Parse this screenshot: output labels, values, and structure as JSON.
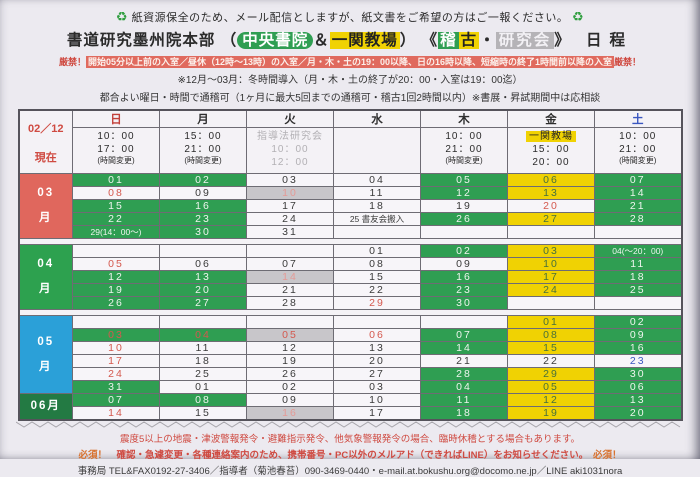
{
  "notices": {
    "recycle_icon": "♻",
    "recycle_line": "紙資源保全のため、メール配信としますが、紙文書をご希望の方はご一報ください。"
  },
  "title": {
    "main": "書道研究墨州院本部",
    "paren_open": "（",
    "venue1": "中央書院",
    "amp": "＆",
    "venue2": "一関教場",
    "paren_close": "）",
    "angle_open": "《",
    "keiko_1": "稽",
    "keiko_2": "古",
    "dot": "・",
    "kenkyukai": "研究会",
    "angle_close": "》",
    "suffix": "日程"
  },
  "rules": {
    "strict_prefix": "厳禁！",
    "strict_body": "開始05分以上前の入室／昼休（12時～13時）の入室／月・木・土の19：00以降、日の16時以降、短縮時の終了1時間前以降の入室",
    "strict_suffix": "厳禁！",
    "winter": "※12月～03月：冬時間導入（月・木・土の終了が20：00・入室は19：00迄）",
    "flexible": "都合よい曜日・時間で通稽可（1ヶ月に最大5回までの通稽可・稽古1回2時間以内）※書展・昇試期間中は応相談"
  },
  "table": {
    "as_of": {
      "date": "02／12",
      "label": "現在"
    },
    "days": [
      {
        "label": "日",
        "cls": "sun",
        "name": "sun"
      },
      {
        "label": "月",
        "cls": "wk",
        "name": "mon"
      },
      {
        "label": "火",
        "cls": "wk",
        "name": "tue"
      },
      {
        "label": "水",
        "cls": "wk",
        "name": "wed"
      },
      {
        "label": "木",
        "cls": "wk",
        "name": "thu"
      },
      {
        "label": "金",
        "cls": "wk",
        "name": "fri"
      },
      {
        "label": "土",
        "cls": "sat",
        "name": "sat"
      }
    ],
    "day_info": [
      {
        "lines": [
          "10：00",
          "17：00",
          "(時間変更)"
        ]
      },
      {
        "lines": [
          "15：00",
          "21：00",
          "(時間変更)"
        ]
      },
      {
        "lines": [
          "指導法研究会",
          "10：00",
          "12：00"
        ],
        "muted": true
      },
      {
        "lines": []
      },
      {
        "lines": [
          "10：00",
          "21：00",
          "(時間変更)"
        ]
      },
      {
        "chip": "一関教場",
        "lines": [
          "15：00",
          "20：00"
        ]
      },
      {
        "lines": [
          "10：00",
          "21：00",
          "(時間変更)"
        ]
      }
    ],
    "months": [
      {
        "label_lines": [
          "03",
          "月"
        ],
        "bg": "#e0675d",
        "gap_after": true,
        "rows": [
          [
            {
              "t": "01",
              "bg": "g"
            },
            {
              "t": "02",
              "bg": "g"
            },
            {
              "t": "03",
              "bg": "w"
            },
            {
              "t": "04",
              "bg": "w"
            },
            {
              "t": "05",
              "bg": "g"
            },
            {
              "t": "06",
              "bg": "y"
            },
            {
              "t": "07",
              "bg": "g"
            }
          ],
          [
            {
              "t": "08",
              "bg": "w",
              "fg": "r"
            },
            {
              "t": "09",
              "bg": "w"
            },
            {
              "t": "10",
              "bg": "gr"
            },
            {
              "t": "11",
              "bg": "w"
            },
            {
              "t": "12",
              "bg": "g"
            },
            {
              "t": "13",
              "bg": "y"
            },
            {
              "t": "14",
              "bg": "g"
            }
          ],
          [
            {
              "t": "15",
              "bg": "g"
            },
            {
              "t": "16",
              "bg": "g"
            },
            {
              "t": "17",
              "bg": "w"
            },
            {
              "t": "18",
              "bg": "w"
            },
            {
              "t": "19",
              "bg": "w"
            },
            {
              "t": "20",
              "bg": "w",
              "fg": "r"
            },
            {
              "t": "21",
              "bg": "g"
            }
          ],
          [
            {
              "t": "22",
              "bg": "g"
            },
            {
              "t": "23",
              "bg": "g"
            },
            {
              "t": "24",
              "bg": "w"
            },
            {
              "t": "25 書友会搬入",
              "bg": "w"
            },
            {
              "t": "26",
              "bg": "g"
            },
            {
              "t": "27",
              "bg": "y"
            },
            {
              "t": "28",
              "bg": "g"
            }
          ],
          [
            {
              "t": "29(14：00～)",
              "bg": "g"
            },
            {
              "t": "30",
              "bg": "g"
            },
            {
              "t": "31",
              "bg": "w"
            },
            {
              "t": "",
              "bg": "w"
            },
            {
              "t": "",
              "bg": "w"
            },
            {
              "t": "",
              "bg": "w"
            },
            {
              "t": "",
              "bg": "w"
            }
          ]
        ]
      },
      {
        "label_lines": [
          "04",
          "月"
        ],
        "bg": "#2da14f",
        "gap_after": true,
        "rows": [
          [
            {
              "t": "",
              "bg": "w"
            },
            {
              "t": "",
              "bg": "w"
            },
            {
              "t": "",
              "bg": "w"
            },
            {
              "t": "01",
              "bg": "w"
            },
            {
              "t": "02",
              "bg": "g"
            },
            {
              "t": "03",
              "bg": "y"
            },
            {
              "t": "04(～20：00)",
              "bg": "g"
            }
          ],
          [
            {
              "t": "05",
              "bg": "w",
              "fg": "r"
            },
            {
              "t": "06",
              "bg": "w"
            },
            {
              "t": "07",
              "bg": "w"
            },
            {
              "t": "08",
              "bg": "w"
            },
            {
              "t": "09",
              "bg": "w"
            },
            {
              "t": "10",
              "bg": "y"
            },
            {
              "t": "11",
              "bg": "g"
            }
          ],
          [
            {
              "t": "12",
              "bg": "g"
            },
            {
              "t": "13",
              "bg": "g"
            },
            {
              "t": "14",
              "bg": "gr"
            },
            {
              "t": "15",
              "bg": "w"
            },
            {
              "t": "16",
              "bg": "g"
            },
            {
              "t": "17",
              "bg": "y"
            },
            {
              "t": "18",
              "bg": "g"
            }
          ],
          [
            {
              "t": "19",
              "bg": "g"
            },
            {
              "t": "20",
              "bg": "g"
            },
            {
              "t": "21",
              "bg": "w"
            },
            {
              "t": "22",
              "bg": "w"
            },
            {
              "t": "23",
              "bg": "g"
            },
            {
              "t": "24",
              "bg": "y"
            },
            {
              "t": "25",
              "bg": "g"
            }
          ],
          [
            {
              "t": "26",
              "bg": "g"
            },
            {
              "t": "27",
              "bg": "g"
            },
            {
              "t": "28",
              "bg": "w"
            },
            {
              "t": "29",
              "bg": "w",
              "fg": "r"
            },
            {
              "t": "30",
              "bg": "g"
            },
            {
              "t": "",
              "bg": "w"
            },
            {
              "t": "",
              "bg": "w"
            }
          ]
        ]
      },
      {
        "label_lines": [
          "05",
          "月"
        ],
        "bg": "#2ba0d8",
        "gap_after": false,
        "rows": [
          [
            {
              "t": "",
              "bg": "w"
            },
            {
              "t": "",
              "bg": "w"
            },
            {
              "t": "",
              "bg": "w"
            },
            {
              "t": "",
              "bg": "w"
            },
            {
              "t": "",
              "bg": "w"
            },
            {
              "t": "01",
              "bg": "y"
            },
            {
              "t": "02",
              "bg": "g"
            }
          ],
          [
            {
              "t": "03",
              "bg": "g",
              "fg": "r"
            },
            {
              "t": "04",
              "bg": "g",
              "fg": "r"
            },
            {
              "t": "05",
              "bg": "gr",
              "fg": "r"
            },
            {
              "t": "06",
              "bg": "w",
              "fg": "r"
            },
            {
              "t": "07",
              "bg": "g"
            },
            {
              "t": "08",
              "bg": "y"
            },
            {
              "t": "09",
              "bg": "g"
            }
          ],
          [
            {
              "t": "10",
              "bg": "w",
              "fg": "r"
            },
            {
              "t": "11",
              "bg": "w"
            },
            {
              "t": "12",
              "bg": "w"
            },
            {
              "t": "13",
              "bg": "w"
            },
            {
              "t": "14",
              "bg": "g"
            },
            {
              "t": "15",
              "bg": "y"
            },
            {
              "t": "16",
              "bg": "g"
            }
          ],
          [
            {
              "t": "17",
              "bg": "w",
              "fg": "r"
            },
            {
              "t": "18",
              "bg": "w"
            },
            {
              "t": "19",
              "bg": "w"
            },
            {
              "t": "20",
              "bg": "w"
            },
            {
              "t": "21",
              "bg": "w"
            },
            {
              "t": "22",
              "bg": "w"
            },
            {
              "t": "23",
              "bg": "w",
              "fg": "b"
            }
          ],
          [
            {
              "t": "24",
              "bg": "w",
              "fg": "r"
            },
            {
              "t": "25",
              "bg": "w"
            },
            {
              "t": "26",
              "bg": "w"
            },
            {
              "t": "27",
              "bg": "w"
            },
            {
              "t": "28",
              "bg": "g"
            },
            {
              "t": "29",
              "bg": "y"
            },
            {
              "t": "30",
              "bg": "g"
            }
          ],
          [
            {
              "t": "31",
              "bg": "g"
            },
            {
              "t": "01",
              "bg": "w"
            },
            {
              "t": "02",
              "bg": "w"
            },
            {
              "t": "03",
              "bg": "w"
            },
            {
              "t": "04",
              "bg": "g"
            },
            {
              "t": "05",
              "bg": "y"
            },
            {
              "t": "06",
              "bg": "g"
            }
          ]
        ]
      },
      {
        "label_lines": [
          "06月"
        ],
        "bg": "#237a43",
        "gap_after": false,
        "rows": [
          [
            {
              "t": "07",
              "bg": "g"
            },
            {
              "t": "08",
              "bg": "g"
            },
            {
              "t": "09",
              "bg": "w"
            },
            {
              "t": "10",
              "bg": "w"
            },
            {
              "t": "11",
              "bg": "g"
            },
            {
              "t": "12",
              "bg": "y"
            },
            {
              "t": "13",
              "bg": "g"
            }
          ],
          [
            {
              "t": "14",
              "bg": "w",
              "fg": "r"
            },
            {
              "t": "15",
              "bg": "w"
            },
            {
              "t": "16",
              "bg": "gr"
            },
            {
              "t": "17",
              "bg": "w"
            },
            {
              "t": "18",
              "bg": "g"
            },
            {
              "t": "19",
              "bg": "y"
            },
            {
              "t": "20",
              "bg": "g"
            }
          ]
        ]
      }
    ]
  },
  "footer": {
    "warning": "震度5以上の地震・津波警報発令・避難指示発令、他気象警報発令の場合、臨時休稽とする場合もあります。",
    "required_prefix": "必須！",
    "required_body": "　確認・急遽変更・各種連絡案内のため、携帯番号・PC以外のメルアド（できればLINE）をお知らせください。　",
    "required_suffix": "必須！",
    "contact": "事務局 TEL&FAX0192-27-3406／指導者（菊池春苔）090-3469-0440・e-mail.at.bokushu.org@docomo.ne.jp／LINE aki1031nora"
  },
  "colors": {
    "lesson_green": "#2f9e52",
    "ichinoseki_yellow": "#f0d203",
    "kenkyukai_gray": "#c8c6ca",
    "holiday_red": "#d4584e",
    "saturday_blue": "#3a57c0",
    "strict_banner_red": "#e06a5e"
  }
}
